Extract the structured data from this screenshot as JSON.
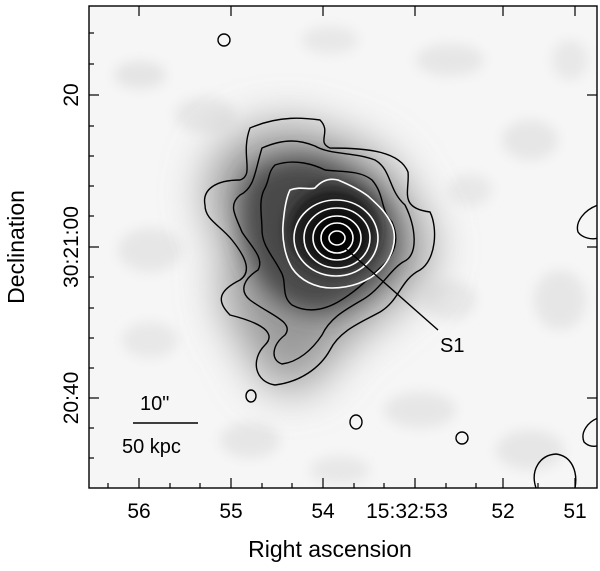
{
  "figure": {
    "xlabel": "Right ascension",
    "ylabel": "Declination",
    "x_ticks": [
      "56",
      "55",
      "54",
      "15:32:53",
      "52",
      "51"
    ],
    "y_ticks": [
      "20",
      "30:21:00",
      "20:40"
    ],
    "source_label": "S1",
    "scale_bar": {
      "top_label": "10\"",
      "bottom_label": "50 kpc"
    },
    "colors": {
      "image_background": "#f4f4f4",
      "core": "#111111",
      "outer_contour": "#000000",
      "inner_contour": "#ffffff"
    },
    "image_type": "grayscale X-ray image with overlaid intensity contours"
  }
}
